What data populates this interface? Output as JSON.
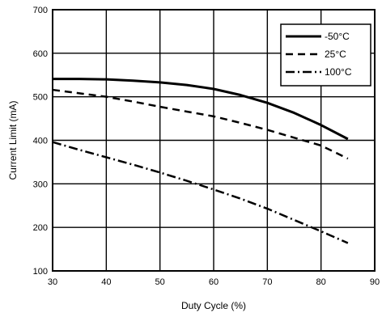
{
  "chart_data": {
    "type": "line",
    "xlabel": "Duty Cycle (%)",
    "ylabel": "Current Limit (mA)",
    "xlim": [
      30,
      90
    ],
    "ylim": [
      100,
      700
    ],
    "xticks": [
      "30",
      "40",
      "50",
      "60",
      "70",
      "80",
      "90"
    ],
    "yticks": [
      "100",
      "200",
      "300",
      "400",
      "500",
      "600",
      "700"
    ],
    "grid": true,
    "legend_position": "top-right",
    "series": [
      {
        "name": "-50°C",
        "style": "solid",
        "x": [
          30,
          35,
          40,
          45,
          50,
          55,
          60,
          65,
          70,
          75,
          80,
          85
        ],
        "y": [
          541,
          541,
          540,
          537,
          533,
          527,
          518,
          504,
          486,
          463,
          435,
          403
        ]
      },
      {
        "name": "25°C",
        "style": "dashed",
        "x": [
          30,
          35,
          40,
          45,
          50,
          55,
          60,
          65,
          70,
          75,
          80,
          85
        ],
        "y": [
          516,
          508,
          500,
          489,
          477,
          466,
          455,
          440,
          424,
          406,
          388,
          358
        ]
      },
      {
        "name": "100°C",
        "style": "dashdot",
        "x": [
          30,
          35,
          40,
          45,
          50,
          55,
          60,
          65,
          70,
          75,
          80,
          85
        ],
        "y": [
          396,
          378,
          361,
          344,
          326,
          307,
          287,
          266,
          243,
          217,
          191,
          164
        ]
      }
    ],
    "colors": {
      "line": "#000000",
      "grid": "#000000",
      "background": "#ffffff"
    }
  }
}
